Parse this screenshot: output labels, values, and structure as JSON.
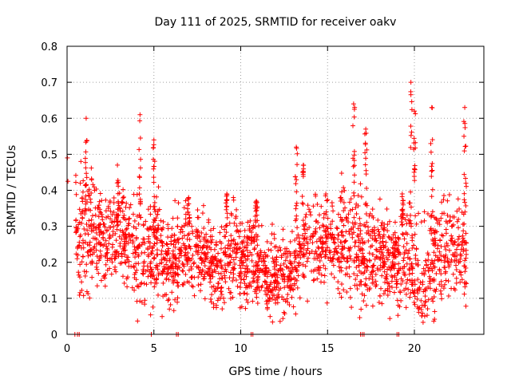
{
  "chart_data": {
    "type": "scatter",
    "title": "Day 111 of 2025, SRMTID for receiver oakv",
    "xlabel": "GPS time / hours",
    "ylabel": "SRMTID / TECUs",
    "xlim": [
      0,
      24
    ],
    "ylim": [
      0,
      0.8
    ],
    "x_ticks": [
      0,
      5,
      10,
      15,
      20
    ],
    "y_ticks": [
      0,
      0.1,
      0.2,
      0.3,
      0.4,
      0.5,
      0.6,
      0.7,
      0.8
    ],
    "x_tick_labels": [
      "0",
      "5",
      "10",
      "15",
      "20"
    ],
    "y_tick_labels": [
      "0",
      "0.1",
      "0.2",
      "0.3",
      "0.4",
      "0.5",
      "0.6",
      "0.7",
      "0.8"
    ],
    "grid": true,
    "marker": "+",
    "color": "#ff0000",
    "series_profile": {
      "name": "SRMTID",
      "x": [
        0.0,
        0.7,
        1.0,
        1.5,
        2.0,
        2.5,
        3.0,
        3.5,
        4.0,
        4.5,
        5.0,
        5.5,
        6.0,
        6.5,
        7.0,
        7.5,
        8.0,
        8.5,
        9.0,
        9.5,
        10.0,
        10.5,
        11.0,
        11.5,
        12.0,
        12.5,
        13.0,
        13.5,
        14.0,
        14.5,
        15.0,
        15.5,
        16.0,
        16.5,
        17.0,
        17.5,
        18.0,
        18.5,
        19.0,
        19.5,
        20.0,
        20.5,
        21.0,
        21.5,
        22.0,
        22.5,
        23.0
      ],
      "y": [
        0.42,
        0.28,
        0.3,
        0.3,
        0.27,
        0.26,
        0.28,
        0.25,
        0.22,
        0.2,
        0.24,
        0.22,
        0.2,
        0.22,
        0.23,
        0.24,
        0.2,
        0.18,
        0.2,
        0.25,
        0.2,
        0.22,
        0.2,
        0.17,
        0.16,
        0.17,
        0.18,
        0.22,
        0.25,
        0.22,
        0.24,
        0.26,
        0.27,
        0.25,
        0.22,
        0.24,
        0.22,
        0.2,
        0.2,
        0.24,
        0.18,
        0.15,
        0.2,
        0.23,
        0.22,
        0.24,
        0.25
      ],
      "spread": [
        0.02,
        0.1,
        0.12,
        0.1,
        0.09,
        0.09,
        0.09,
        0.08,
        0.1,
        0.1,
        0.1,
        0.09,
        0.08,
        0.08,
        0.07,
        0.07,
        0.07,
        0.07,
        0.08,
        0.09,
        0.08,
        0.08,
        0.07,
        0.07,
        0.07,
        0.07,
        0.07,
        0.08,
        0.09,
        0.08,
        0.09,
        0.09,
        0.1,
        0.1,
        0.09,
        0.09,
        0.09,
        0.08,
        0.09,
        0.1,
        0.1,
        0.1,
        0.11,
        0.1,
        0.1,
        0.1,
        0.1
      ]
    },
    "peaks": {
      "x": [
        1.1,
        2.9,
        4.2,
        5.0,
        7.0,
        9.2,
        10.9,
        13.2,
        13.6,
        16.5,
        17.2,
        19.3,
        19.8,
        20.0,
        21.0,
        22.9
      ],
      "y": [
        0.6,
        0.47,
        0.61,
        0.54,
        0.38,
        0.39,
        0.37,
        0.52,
        0.47,
        0.64,
        0.57,
        0.39,
        0.7,
        0.62,
        0.63,
        0.63
      ]
    },
    "zero_points": {
      "x": [
        0.45,
        0.6,
        0.7,
        4.85,
        6.3,
        6.4,
        10.6,
        10.7,
        16.9,
        17.0,
        17.1,
        19.0,
        19.1
      ]
    }
  }
}
